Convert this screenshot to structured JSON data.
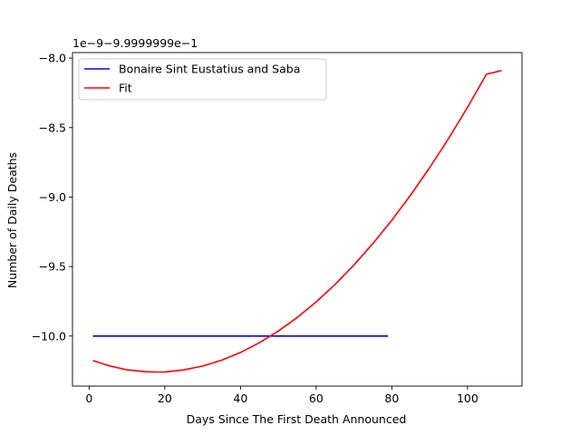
{
  "chart_data": {
    "type": "line",
    "title": "",
    "xlabel": "Days Since The First Death Announced",
    "ylabel": "Number of Daily Deaths",
    "offset_label": "1e−9−9.9999999e−1",
    "xlim": [
      -4.4,
      114.4
    ],
    "ylim": [
      -10.36,
      -7.96
    ],
    "xticks": [
      0,
      20,
      40,
      60,
      80,
      100
    ],
    "xtick_labels": [
      "0",
      "20",
      "40",
      "60",
      "80",
      "100"
    ],
    "yticks": [
      -10.0,
      -9.5,
      -9.0,
      -8.5,
      -8.0
    ],
    "ytick_labels": [
      "−10.0",
      "−9.5",
      "−9.0",
      "−8.5",
      "−8.0"
    ],
    "grid": false,
    "legend_position": "top-left",
    "series": [
      {
        "name": "Bonaire Sint Eustatius and Saba",
        "color": "#0000ff",
        "x": [
          1,
          79
        ],
        "y": [
          -10.0,
          -10.0
        ]
      },
      {
        "name": "Fit",
        "color": "#ff0000",
        "x": [
          1,
          5,
          10,
          15,
          18,
          20,
          25,
          30,
          35,
          40,
          45,
          50,
          55,
          60,
          65,
          70,
          75,
          80,
          85,
          90,
          95,
          100,
          105,
          109
        ],
        "y": [
          -10.176,
          -10.212,
          -10.243,
          -10.257,
          -10.259,
          -10.258,
          -10.244,
          -10.216,
          -10.174,
          -10.118,
          -10.048,
          -9.964,
          -9.866,
          -9.754,
          -9.628,
          -9.488,
          -9.334,
          -9.166,
          -8.984,
          -8.788,
          -8.578,
          -8.354,
          -8.116,
          -8.09
        ]
      }
    ]
  }
}
